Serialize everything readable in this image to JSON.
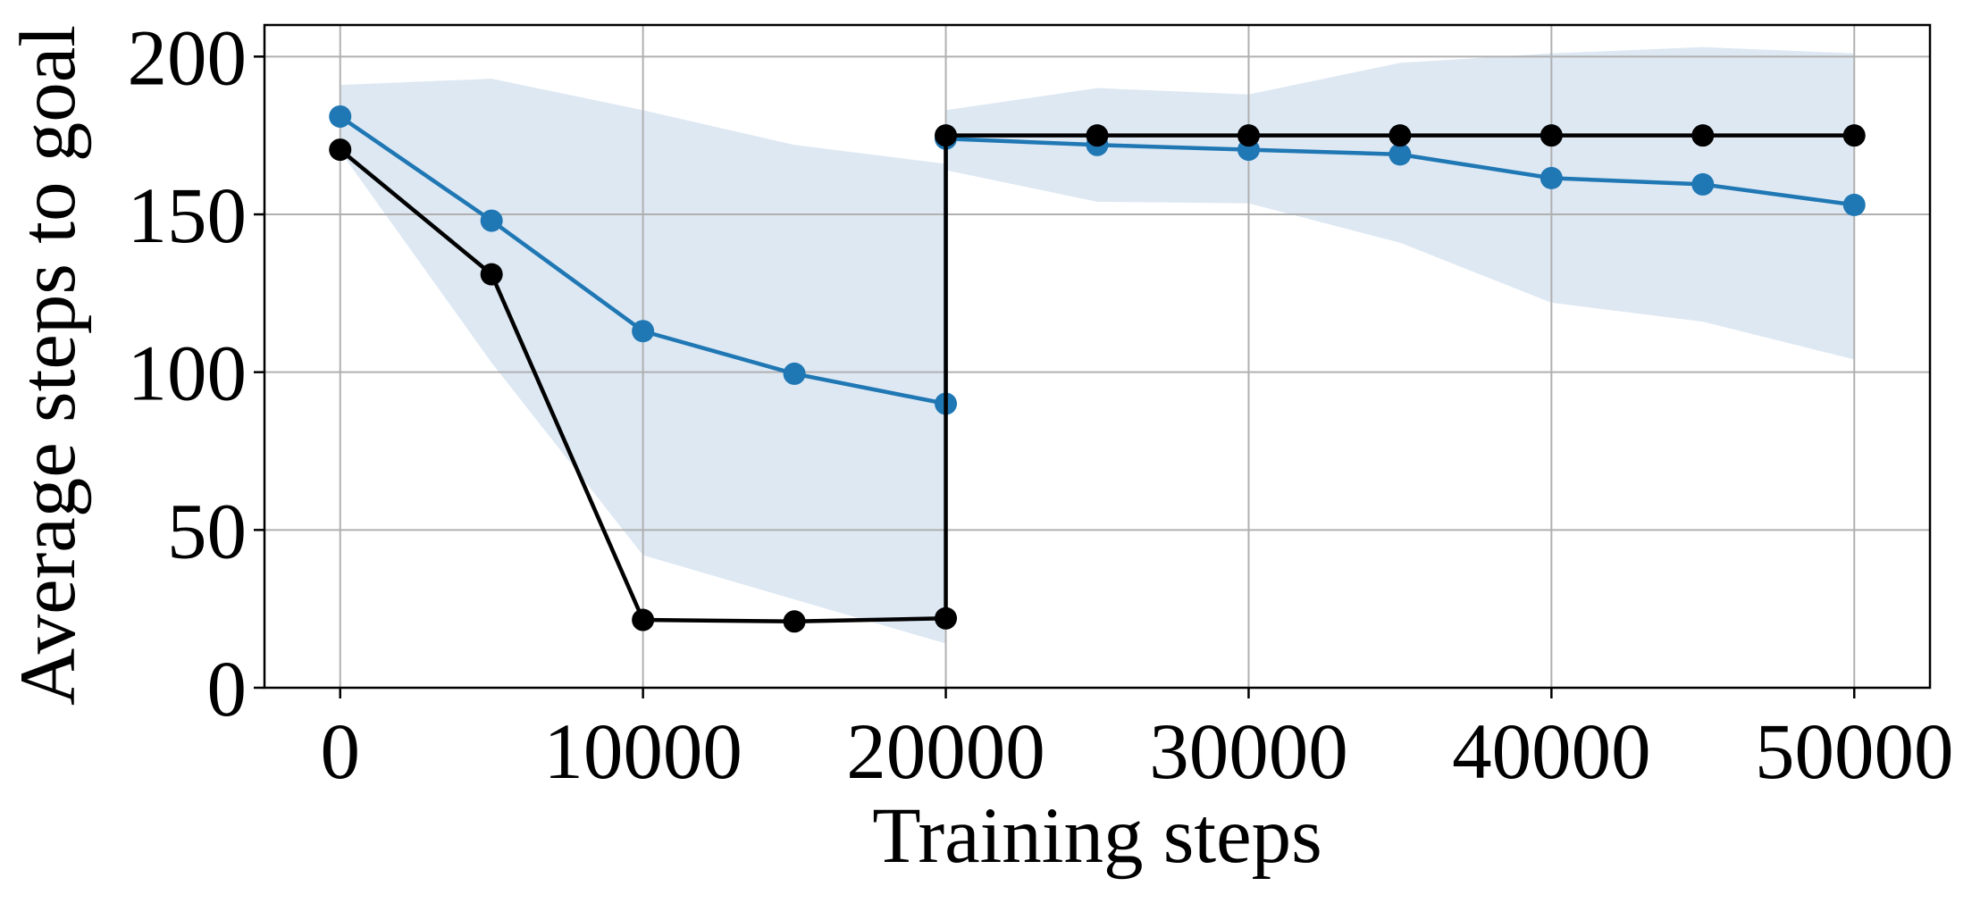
{
  "chart_data": {
    "type": "line",
    "xlabel": "Training steps",
    "ylabel": "Average steps to goal",
    "xlim": [
      -2500,
      52500
    ],
    "ylim": [
      0,
      210
    ],
    "xticks": [
      0,
      10000,
      20000,
      30000,
      40000,
      50000
    ],
    "yticks": [
      0,
      50,
      100,
      150,
      200
    ],
    "grid": true,
    "legend": "none",
    "series": [
      {
        "color": "#1f77b4",
        "marker": "circle",
        "x": [
          0,
          5000,
          10000,
          15000,
          20000,
          20000,
          25000,
          30000,
          35000,
          40000,
          45000,
          50000
        ],
        "values": [
          181,
          148,
          113,
          99.5,
          90,
          174,
          172,
          170.5,
          169,
          161.5,
          159.5,
          153
        ],
        "band_upper": [
          191,
          193,
          183,
          172,
          166,
          183,
          190,
          188,
          198,
          201,
          203,
          201
        ],
        "band_lower": [
          170,
          103,
          42,
          28,
          14,
          164,
          154,
          153.5,
          141,
          122,
          116,
          104
        ],
        "band_color": "#dde8f3"
      },
      {
        "color": "#000000",
        "marker": "circle",
        "x": [
          0,
          5000,
          10000,
          15000,
          20000,
          20000,
          25000,
          30000,
          35000,
          40000,
          45000,
          50000
        ],
        "values": [
          170.5,
          131,
          21.5,
          21,
          22,
          175,
          175,
          175,
          175,
          175,
          175,
          175
        ]
      }
    ]
  }
}
